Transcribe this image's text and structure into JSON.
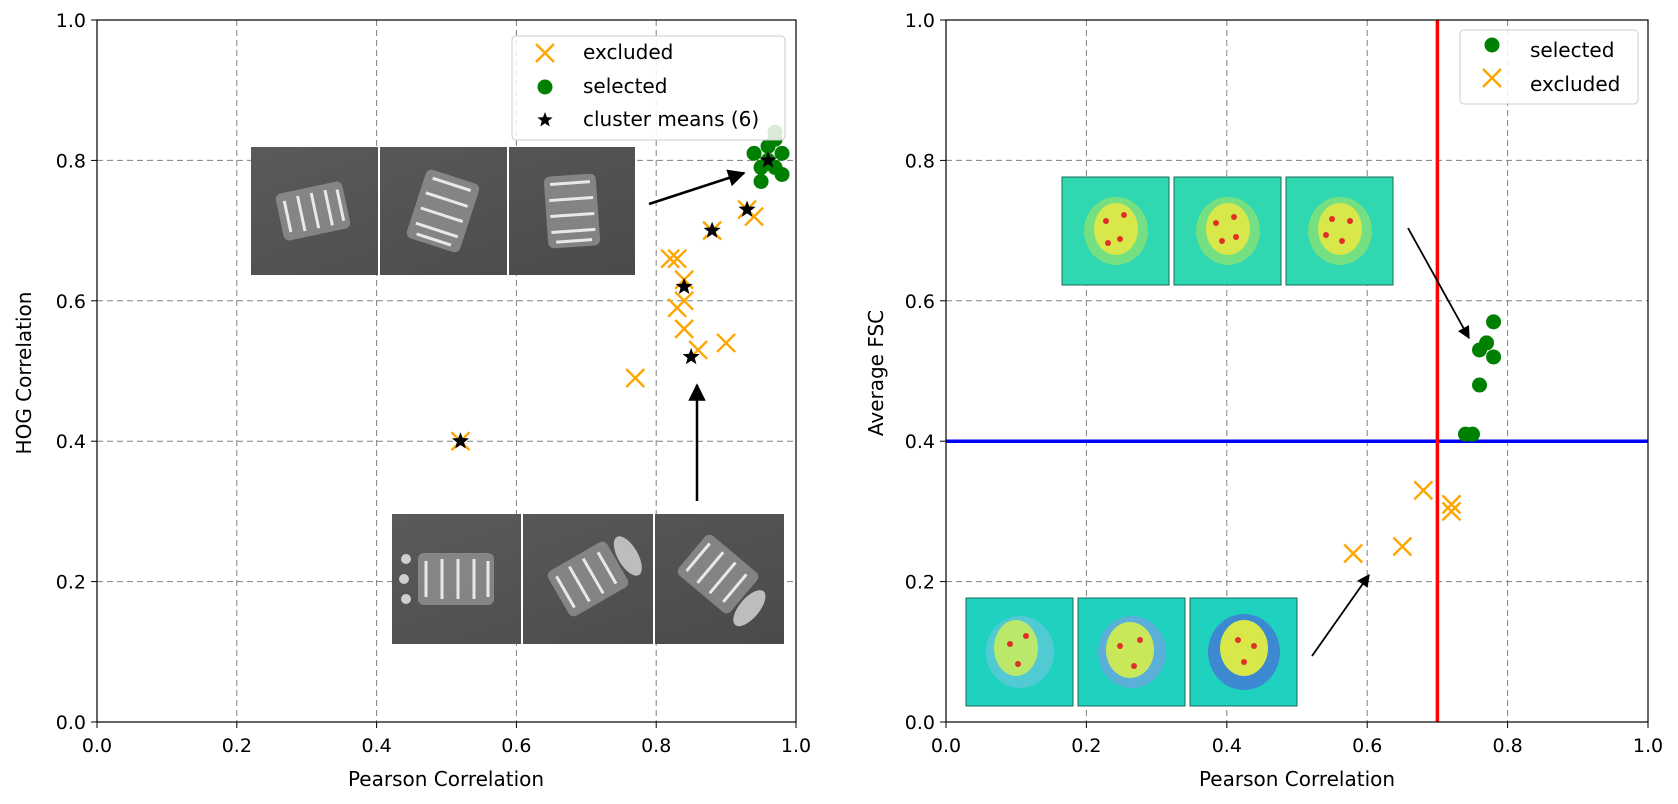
{
  "colors": {
    "excluded": "#FFA500",
    "selected": "#008000",
    "cluster_mean": "#000000",
    "threshold_vertical": "#FF0000",
    "threshold_horizontal": "#0000FF",
    "grid": "#808080"
  },
  "chart_data": [
    {
      "type": "scatter",
      "xlabel": "Pearson Correlation",
      "ylabel": "HOG Correlation",
      "xlim": [
        0.0,
        1.0
      ],
      "ylim": [
        0.0,
        1.0
      ],
      "xticks": [
        "0.0",
        "0.2",
        "0.4",
        "0.6",
        "0.8",
        "1.0"
      ],
      "yticks": [
        "0.0",
        "0.2",
        "0.4",
        "0.6",
        "0.8",
        "1.0"
      ],
      "grid": true,
      "legend_position": "top-right",
      "legend": [
        "excluded",
        "selected",
        "cluster means (6)"
      ],
      "series": [
        {
          "name": "excluded",
          "marker": "x",
          "points": [
            [
              0.52,
              0.4
            ],
            [
              0.77,
              0.49
            ],
            [
              0.82,
              0.66
            ],
            [
              0.83,
              0.66
            ],
            [
              0.83,
              0.59
            ],
            [
              0.84,
              0.63
            ],
            [
              0.84,
              0.56
            ],
            [
              0.84,
              0.6
            ],
            [
              0.86,
              0.53
            ],
            [
              0.88,
              0.7
            ],
            [
              0.9,
              0.54
            ],
            [
              0.93,
              0.73
            ],
            [
              0.94,
              0.72
            ]
          ]
        },
        {
          "name": "selected",
          "marker": "circle",
          "points": [
            [
              0.94,
              0.81
            ],
            [
              0.95,
              0.79
            ],
            [
              0.95,
              0.77
            ],
            [
              0.96,
              0.8
            ],
            [
              0.96,
              0.82
            ],
            [
              0.97,
              0.83
            ],
            [
              0.97,
              0.79
            ],
            [
              0.98,
              0.81
            ],
            [
              0.98,
              0.78
            ],
            [
              0.97,
              0.84
            ]
          ]
        },
        {
          "name": "cluster means (6)",
          "marker": "star",
          "points": [
            [
              0.52,
              0.4
            ],
            [
              0.84,
              0.62
            ],
            [
              0.85,
              0.52
            ],
            [
              0.88,
              0.7
            ],
            [
              0.93,
              0.73
            ],
            [
              0.96,
              0.8
            ]
          ]
        }
      ]
    },
    {
      "type": "scatter",
      "xlabel": "Pearson Correlation",
      "ylabel": "Average FSC",
      "xlim": [
        0.0,
        1.0
      ],
      "ylim": [
        0.0,
        1.0
      ],
      "xticks": [
        "0.0",
        "0.2",
        "0.4",
        "0.6",
        "0.8",
        "1.0"
      ],
      "yticks": [
        "0.0",
        "0.2",
        "0.4",
        "0.6",
        "0.8",
        "1.0"
      ],
      "grid": true,
      "legend_position": "top-right",
      "legend": [
        "selected",
        "excluded"
      ],
      "thresholds": {
        "vertical_x": 0.7,
        "horizontal_y": 0.4
      },
      "series": [
        {
          "name": "selected",
          "marker": "circle",
          "points": [
            [
              0.74,
              0.41
            ],
            [
              0.75,
              0.41
            ],
            [
              0.76,
              0.48
            ],
            [
              0.76,
              0.53
            ],
            [
              0.77,
              0.54
            ],
            [
              0.78,
              0.52
            ],
            [
              0.78,
              0.57
            ]
          ]
        },
        {
          "name": "excluded",
          "marker": "x",
          "points": [
            [
              0.58,
              0.24
            ],
            [
              0.65,
              0.25
            ],
            [
              0.68,
              0.33
            ],
            [
              0.72,
              0.31
            ],
            [
              0.72,
              0.3
            ]
          ]
        }
      ]
    }
  ]
}
